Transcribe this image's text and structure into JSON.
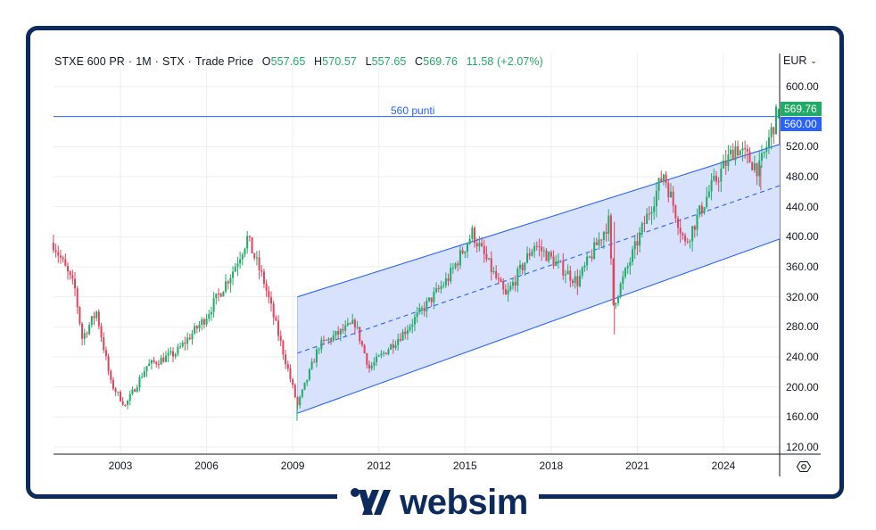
{
  "header": {
    "symbol": "STXE 600 PR",
    "interval": "1M",
    "exchange": "STX",
    "price_type": "Trade Price",
    "open_key": "O",
    "open": "557.65",
    "high_key": "H",
    "high": "570.57",
    "low_key": "L",
    "low": "557.65",
    "close_key": "C",
    "close": "569.76",
    "change": "11.58 (+2.07%)"
  },
  "currency": {
    "label": "EUR",
    "chevron": "⌄"
  },
  "price_axis": {
    "ticks": [
      "600.00",
      "520.00",
      "480.00",
      "440.00",
      "400.00",
      "360.00",
      "320.00",
      "280.00",
      "240.00",
      "200.00",
      "160.00",
      "120.00"
    ],
    "last_price": "569.76",
    "horizontal_level": "560.00"
  },
  "time_axis": {
    "ticks": [
      "2003",
      "2006",
      "2009",
      "2012",
      "2015",
      "2018",
      "2021",
      "2024"
    ]
  },
  "annotation": {
    "horizontal_line_label": "560 punti"
  },
  "brand": {
    "name": "websim"
  },
  "colors": {
    "up": "#22ab66",
    "down": "#e0445c",
    "line": "#2962ff",
    "channel_fill": "#d6e0fd",
    "frame": "#0d2a5c",
    "grid": "#eeeeee"
  },
  "chart_data": {
    "type": "candlestick",
    "title": "STXE 600 PR · 1M · STX · Trade Price",
    "currency": "EUR",
    "ylim": [
      105,
      620
    ],
    "y_ticks": [
      120,
      160,
      200,
      240,
      280,
      320,
      360,
      400,
      440,
      480,
      520,
      600
    ],
    "x_ticks": [
      "2003",
      "2006",
      "2009",
      "2012",
      "2015",
      "2018",
      "2021",
      "2024"
    ],
    "x_range": [
      "2000-09",
      "2025-12"
    ],
    "grid": true,
    "last": {
      "open": 557.65,
      "high": 570.57,
      "low": 557.65,
      "close": 569.76,
      "change": 11.58,
      "change_pct": 2.07
    },
    "horizontal_line": {
      "value": 560,
      "label": "560 punti"
    },
    "regression_channel": {
      "start": "2009-03",
      "end": "2025-12",
      "upper": [
        320,
        523
      ],
      "middle": [
        245,
        468
      ],
      "lower": [
        165,
        397
      ]
    },
    "approx_monthly_close_path": [
      {
        "date": "2000-09",
        "value": 392
      },
      {
        "date": "2001-06",
        "value": 330
      },
      {
        "date": "2001-09",
        "value": 265
      },
      {
        "date": "2002-03",
        "value": 300
      },
      {
        "date": "2002-09",
        "value": 205
      },
      {
        "date": "2003-03",
        "value": 175
      },
      {
        "date": "2003-12",
        "value": 228
      },
      {
        "date": "2004-12",
        "value": 245
      },
      {
        "date": "2005-12",
        "value": 290
      },
      {
        "date": "2006-12",
        "value": 355
      },
      {
        "date": "2007-06",
        "value": 398
      },
      {
        "date": "2008-01",
        "value": 340
      },
      {
        "date": "2008-10",
        "value": 235
      },
      {
        "date": "2009-03",
        "value": 175
      },
      {
        "date": "2009-12",
        "value": 255
      },
      {
        "date": "2011-03",
        "value": 285
      },
      {
        "date": "2011-09",
        "value": 225
      },
      {
        "date": "2012-12",
        "value": 275
      },
      {
        "date": "2014-06",
        "value": 345
      },
      {
        "date": "2015-04",
        "value": 405
      },
      {
        "date": "2016-06",
        "value": 320
      },
      {
        "date": "2017-06",
        "value": 390
      },
      {
        "date": "2018-12",
        "value": 340
      },
      {
        "date": "2020-01",
        "value": 420
      },
      {
        "date": "2020-03",
        "value": 310
      },
      {
        "date": "2021-12",
        "value": 485
      },
      {
        "date": "2022-09",
        "value": 390
      },
      {
        "date": "2023-07",
        "value": 460
      },
      {
        "date": "2024-06",
        "value": 520
      },
      {
        "date": "2025-04",
        "value": 490
      },
      {
        "date": "2025-12",
        "value": 569.76
      }
    ]
  }
}
